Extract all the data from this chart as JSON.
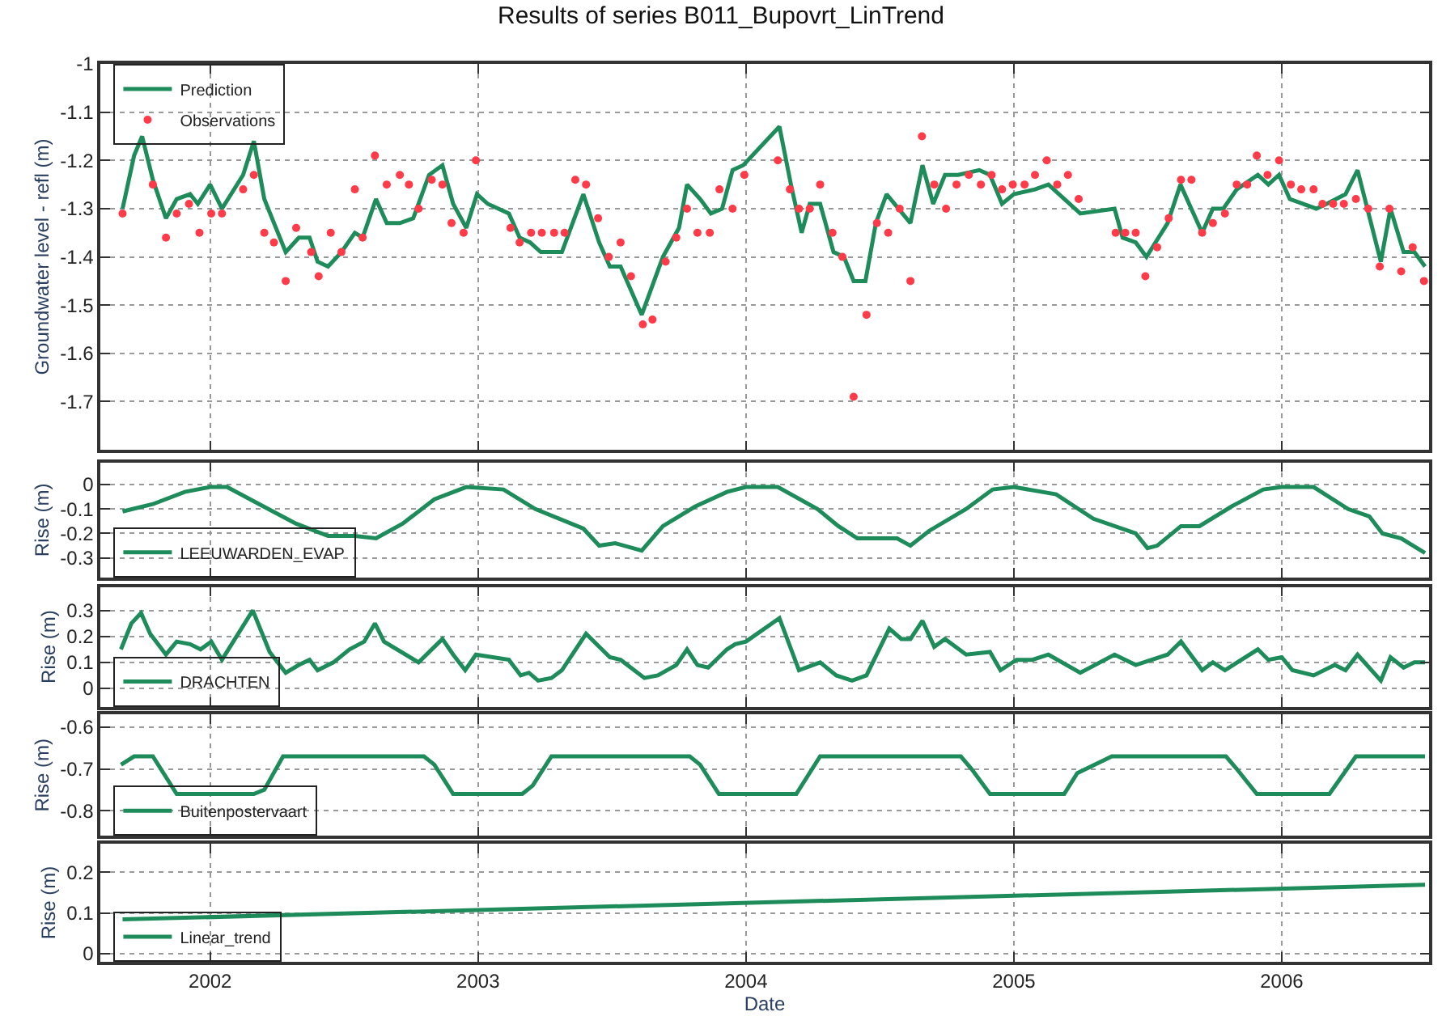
{
  "chart_data": [
    {
      "type": "line",
      "title": "Results of series B011_Bupovrt_LinTrend",
      "ylabel": "Groundwater level - refl (m)",
      "xlim": [
        2001.59,
        2006.55
      ],
      "xticks": [
        2002,
        2003,
        2004,
        2005,
        2006
      ],
      "ylim": [
        -1.8,
        -1
      ],
      "yticks": [
        -1,
        -1.1,
        -1.2,
        -1.3,
        -1.4,
        -1.5,
        -1.6,
        -1.7
      ],
      "grid": true,
      "legend": "top left",
      "tick_labels": "y",
      "series": [
        {
          "name": "Prediction",
          "type": "line",
          "color": "#1e8c5a",
          "x": [
            2001.673,
            2001.716,
            2001.746,
            2001.786,
            2001.835,
            2001.875,
            2001.925,
            2001.954,
            2002.0,
            2002.044,
            2002.123,
            2002.163,
            2002.202,
            2002.282,
            2002.331,
            2002.371,
            2002.401,
            2002.44,
            2002.49,
            2002.54,
            2002.569,
            2002.619,
            2002.659,
            2002.708,
            2002.758,
            2002.817,
            2002.867,
            2002.907,
            2002.956,
            2002.996,
            2003.036,
            2003.115,
            2003.155,
            2003.194,
            2003.234,
            2003.313,
            2003.393,
            2003.452,
            2003.492,
            2003.532,
            2003.611,
            2003.69,
            2003.75,
            2003.78,
            2003.829,
            2003.869,
            2003.911,
            2003.95,
            2003.99,
            2004.125,
            2004.168,
            2004.208,
            2004.238,
            2004.277,
            2004.327,
            2004.366,
            2004.402,
            2004.446,
            2004.485,
            2004.525,
            2004.614,
            2004.659,
            2004.699,
            2004.743,
            2004.792,
            2004.871,
            2004.911,
            2004.956,
            2005.0,
            2005.079,
            2005.129,
            2005.248,
            2005.376,
            2005.406,
            2005.455,
            2005.495,
            2005.574,
            2005.622,
            2005.703,
            2005.743,
            2005.782,
            2005.832,
            2005.911,
            2005.95,
            2005.99,
            2006.03,
            2006.129,
            2006.168,
            2006.238,
            2006.283,
            2006.37,
            2006.406,
            2006.455,
            2006.495,
            2006.535
          ],
          "values": [
            -1.3,
            -1.19,
            -1.15,
            -1.24,
            -1.32,
            -1.28,
            -1.27,
            -1.29,
            -1.25,
            -1.3,
            -1.23,
            -1.16,
            -1.28,
            -1.39,
            -1.36,
            -1.36,
            -1.41,
            -1.42,
            -1.39,
            -1.35,
            -1.36,
            -1.28,
            -1.33,
            -1.33,
            -1.32,
            -1.23,
            -1.21,
            -1.29,
            -1.34,
            -1.27,
            -1.29,
            -1.31,
            -1.36,
            -1.37,
            -1.39,
            -1.39,
            -1.27,
            -1.37,
            -1.42,
            -1.42,
            -1.52,
            -1.4,
            -1.34,
            -1.25,
            -1.28,
            -1.31,
            -1.3,
            -1.22,
            -1.21,
            -1.13,
            -1.25,
            -1.35,
            -1.29,
            -1.29,
            -1.39,
            -1.4,
            -1.45,
            -1.45,
            -1.33,
            -1.27,
            -1.33,
            -1.21,
            -1.29,
            -1.23,
            -1.23,
            -1.22,
            -1.23,
            -1.29,
            -1.27,
            -1.26,
            -1.25,
            -1.31,
            -1.3,
            -1.36,
            -1.37,
            -1.4,
            -1.33,
            -1.25,
            -1.35,
            -1.3,
            -1.3,
            -1.26,
            -1.23,
            -1.25,
            -1.23,
            -1.28,
            -1.3,
            -1.29,
            -1.27,
            -1.22,
            -1.41,
            -1.3,
            -1.39,
            -1.39,
            -1.42
          ]
        },
        {
          "name": "Observations",
          "type": "scatter",
          "color": "#ff3b4a",
          "x": [
            2001.673,
            2001.786,
            2001.835,
            2001.875,
            2001.921,
            2001.96,
            2002.004,
            2002.044,
            2002.123,
            2002.163,
            2002.202,
            2002.238,
            2002.282,
            2002.321,
            2002.377,
            2002.405,
            2002.45,
            2002.49,
            2002.54,
            2002.569,
            2002.615,
            2002.659,
            2002.708,
            2002.742,
            2002.778,
            2002.827,
            2002.867,
            2002.901,
            2002.946,
            2002.992,
            2003.121,
            2003.155,
            2003.198,
            2003.238,
            2003.284,
            2003.323,
            2003.363,
            2003.403,
            2003.448,
            2003.488,
            2003.532,
            2003.571,
            2003.615,
            2003.651,
            2003.7,
            2003.74,
            2003.78,
            2003.819,
            2003.865,
            2003.901,
            2003.95,
            2003.994,
            2004.119,
            2004.164,
            2004.198,
            2004.238,
            2004.277,
            2004.323,
            2004.36,
            2004.402,
            2004.45,
            2004.489,
            2004.531,
            2004.574,
            2004.614,
            2004.657,
            2004.703,
            2004.747,
            2004.786,
            2004.832,
            2004.877,
            2004.917,
            2004.956,
            2004.996,
            2005.04,
            2005.079,
            2005.123,
            2005.162,
            2005.202,
            2005.242,
            2005.38,
            2005.416,
            2005.455,
            2005.491,
            2005.535,
            2005.578,
            2005.624,
            2005.663,
            2005.703,
            2005.743,
            2005.788,
            2005.832,
            2005.871,
            2005.907,
            2005.947,
            2005.99,
            2006.034,
            2006.073,
            2006.119,
            2006.152,
            2006.192,
            2006.232,
            2006.277,
            2006.323,
            2006.366,
            2006.402,
            2006.446,
            2006.489,
            2006.531
          ],
          "values": [
            -1.31,
            -1.25,
            -1.36,
            -1.31,
            -1.29,
            -1.35,
            -1.31,
            -1.31,
            -1.26,
            -1.23,
            -1.35,
            -1.37,
            -1.45,
            -1.34,
            -1.39,
            -1.44,
            -1.35,
            -1.39,
            -1.26,
            -1.36,
            -1.19,
            -1.25,
            -1.23,
            -1.25,
            -1.3,
            -1.24,
            -1.25,
            -1.33,
            -1.35,
            -1.2,
            -1.34,
            -1.37,
            -1.35,
            -1.35,
            -1.35,
            -1.35,
            -1.24,
            -1.25,
            -1.32,
            -1.4,
            -1.37,
            -1.44,
            -1.54,
            -1.53,
            -1.41,
            -1.36,
            -1.3,
            -1.35,
            -1.35,
            -1.26,
            -1.3,
            -1.23,
            -1.2,
            -1.26,
            -1.3,
            -1.3,
            -1.25,
            -1.35,
            -1.4,
            -1.69,
            -1.52,
            -1.33,
            -1.35,
            -1.3,
            -1.45,
            -1.15,
            -1.25,
            -1.3,
            -1.25,
            -1.23,
            -1.25,
            -1.23,
            -1.26,
            -1.25,
            -1.25,
            -1.23,
            -1.2,
            -1.25,
            -1.23,
            -1.28,
            -1.35,
            -1.35,
            -1.35,
            -1.44,
            -1.38,
            -1.32,
            -1.24,
            -1.24,
            -1.35,
            -1.33,
            -1.31,
            -1.25,
            -1.25,
            -1.19,
            -1.23,
            -1.2,
            -1.25,
            -1.26,
            -1.26,
            -1.29,
            -1.29,
            -1.29,
            -1.28,
            -1.3,
            -1.42,
            -1.3,
            -1.43,
            -1.38,
            -1.45
          ]
        }
      ]
    },
    {
      "type": "line",
      "ylabel": "Rise (m)",
      "xlim": [
        2001.59,
        2006.55
      ],
      "xticks": [
        2002,
        2003,
        2004,
        2005,
        2006
      ],
      "ylim": [
        -0.38,
        0.09
      ],
      "yticks": [
        0,
        -0.1,
        -0.2,
        -0.3
      ],
      "grid": true,
      "legend": "bottom left",
      "tick_labels": "y",
      "series": [
        {
          "name": "LEEUWARDEN_EVAP",
          "color": "#1e8c5a",
          "x": [
            2001.673,
            2001.786,
            2001.905,
            2002.0,
            2002.063,
            2002.183,
            2002.321,
            2002.44,
            2002.54,
            2002.619,
            2002.718,
            2002.837,
            2002.956,
            2003.095,
            2003.214,
            2003.393,
            2003.452,
            2003.512,
            2003.611,
            2003.69,
            2003.81,
            2003.929,
            2004.0,
            2004.119,
            2004.267,
            2004.345,
            2004.416,
            2004.465,
            2004.564,
            2004.614,
            2004.683,
            2004.822,
            2004.921,
            2005.0,
            2005.158,
            2005.297,
            2005.455,
            2005.499,
            2005.535,
            2005.624,
            2005.693,
            2005.812,
            2005.931,
            2006.0,
            2006.119,
            2006.248,
            2006.327,
            2006.376,
            2006.446,
            2006.535
          ],
          "values": [
            -0.11,
            -0.08,
            -0.03,
            -0.01,
            -0.01,
            -0.08,
            -0.16,
            -0.21,
            -0.21,
            -0.22,
            -0.16,
            -0.06,
            -0.01,
            -0.02,
            -0.1,
            -0.18,
            -0.25,
            -0.24,
            -0.27,
            -0.17,
            -0.09,
            -0.03,
            -0.01,
            -0.01,
            -0.1,
            -0.17,
            -0.22,
            -0.22,
            -0.22,
            -0.25,
            -0.19,
            -0.1,
            -0.02,
            -0.01,
            -0.04,
            -0.14,
            -0.2,
            -0.26,
            -0.25,
            -0.17,
            -0.17,
            -0.09,
            -0.02,
            -0.01,
            -0.01,
            -0.1,
            -0.13,
            -0.2,
            -0.22,
            -0.28
          ]
        }
      ]
    },
    {
      "type": "line",
      "ylabel": "Rise (m)",
      "xlim": [
        2001.59,
        2006.55
      ],
      "xticks": [
        2002,
        2003,
        2004,
        2005,
        2006
      ],
      "ylim": [
        -0.07,
        0.39
      ],
      "yticks": [
        0,
        0.1,
        0.2,
        0.3
      ],
      "grid": true,
      "legend": "bottom left",
      "tick_labels": "y",
      "series": [
        {
          "name": "DRACHTEN",
          "color": "#1e8c5a",
          "x": [
            2001.667,
            2001.706,
            2001.742,
            2001.776,
            2001.835,
            2001.875,
            2001.925,
            2001.964,
            2002.004,
            2002.044,
            2002.159,
            2002.222,
            2002.282,
            2002.331,
            2002.371,
            2002.401,
            2002.46,
            2002.52,
            2002.575,
            2002.615,
            2002.649,
            2002.778,
            2002.867,
            2002.907,
            2002.952,
            2002.992,
            2003.115,
            2003.159,
            2003.19,
            2003.224,
            2003.274,
            2003.313,
            2003.403,
            2003.492,
            2003.532,
            2003.621,
            2003.671,
            2003.74,
            2003.78,
            2003.819,
            2003.859,
            2003.929,
            2003.96,
            2004.0,
            2004.125,
            2004.198,
            2004.277,
            2004.337,
            2004.396,
            2004.45,
            2004.535,
            2004.58,
            2004.614,
            2004.659,
            2004.703,
            2004.743,
            2004.822,
            2004.911,
            2004.95,
            2005.01,
            2005.069,
            2005.129,
            2005.248,
            2005.376,
            2005.455,
            2005.574,
            2005.624,
            2005.703,
            2005.743,
            2005.788,
            2005.911,
            2005.95,
            2006.0,
            2006.04,
            2006.119,
            2006.198,
            2006.238,
            2006.283,
            2006.37,
            2006.406,
            2006.455,
            2006.495,
            2006.535
          ],
          "values": [
            0.15,
            0.25,
            0.29,
            0.21,
            0.13,
            0.18,
            0.17,
            0.15,
            0.18,
            0.11,
            0.3,
            0.14,
            0.06,
            0.09,
            0.11,
            0.07,
            0.1,
            0.15,
            0.18,
            0.25,
            0.18,
            0.1,
            0.19,
            0.13,
            0.07,
            0.13,
            0.11,
            0.05,
            0.06,
            0.03,
            0.04,
            0.07,
            0.21,
            0.12,
            0.11,
            0.04,
            0.05,
            0.09,
            0.15,
            0.09,
            0.08,
            0.15,
            0.17,
            0.18,
            0.27,
            0.07,
            0.1,
            0.05,
            0.03,
            0.05,
            0.23,
            0.19,
            0.19,
            0.26,
            0.16,
            0.19,
            0.13,
            0.14,
            0.07,
            0.11,
            0.11,
            0.13,
            0.06,
            0.13,
            0.09,
            0.13,
            0.18,
            0.07,
            0.1,
            0.07,
            0.15,
            0.11,
            0.12,
            0.07,
            0.05,
            0.09,
            0.07,
            0.13,
            0.03,
            0.12,
            0.08,
            0.1,
            0.1
          ]
        }
      ]
    },
    {
      "type": "line",
      "ylabel": "Rise (m)",
      "xlim": [
        2001.59,
        2006.55
      ],
      "xticks": [
        2002,
        2003,
        2004,
        2005,
        2006
      ],
      "ylim": [
        -0.86,
        -0.57
      ],
      "yticks": [
        -0.6,
        -0.7,
        -0.8
      ],
      "grid": true,
      "legend": "bottom left",
      "tick_labels": "y",
      "series": [
        {
          "name": "Buitenpostervaart",
          "color": "#1e8c5a",
          "x": [
            2001.667,
            2001.716,
            2001.786,
            2001.875,
            2002.163,
            2002.202,
            2002.272,
            2002.798,
            2002.837,
            2002.907,
            2003.165,
            2003.204,
            2003.274,
            2003.79,
            2003.829,
            2003.899,
            2004.0,
            2004.188,
            2004.277,
            2004.802,
            2004.842,
            2004.911,
            2005.188,
            2005.237,
            2005.366,
            2005.792,
            2005.832,
            2005.907,
            2006.178,
            2006.277,
            2006.535
          ],
          "values": [
            -0.69,
            -0.67,
            -0.67,
            -0.76,
            -0.76,
            -0.75,
            -0.67,
            -0.67,
            -0.69,
            -0.76,
            -0.76,
            -0.74,
            -0.67,
            -0.67,
            -0.69,
            -0.76,
            -0.76,
            -0.76,
            -0.67,
            -0.67,
            -0.7,
            -0.76,
            -0.76,
            -0.71,
            -0.67,
            -0.67,
            -0.7,
            -0.76,
            -0.76,
            -0.67,
            -0.67
          ]
        }
      ]
    },
    {
      "type": "line",
      "ylabel": "Rise (m)",
      "xlabel": "Date",
      "xlim": [
        2001.59,
        2006.55
      ],
      "xticks": [
        2002,
        2003,
        2004,
        2005,
        2006
      ],
      "ylim": [
        -0.02,
        0.27
      ],
      "yticks": [
        0,
        0.1,
        0.2
      ],
      "grid": true,
      "legend": "bottom left",
      "series": [
        {
          "name": "Linear_trend",
          "color": "#1e8c5a",
          "x": [
            2001.673,
            2006.535
          ],
          "values": [
            0.084,
            0.169
          ]
        }
      ]
    }
  ]
}
